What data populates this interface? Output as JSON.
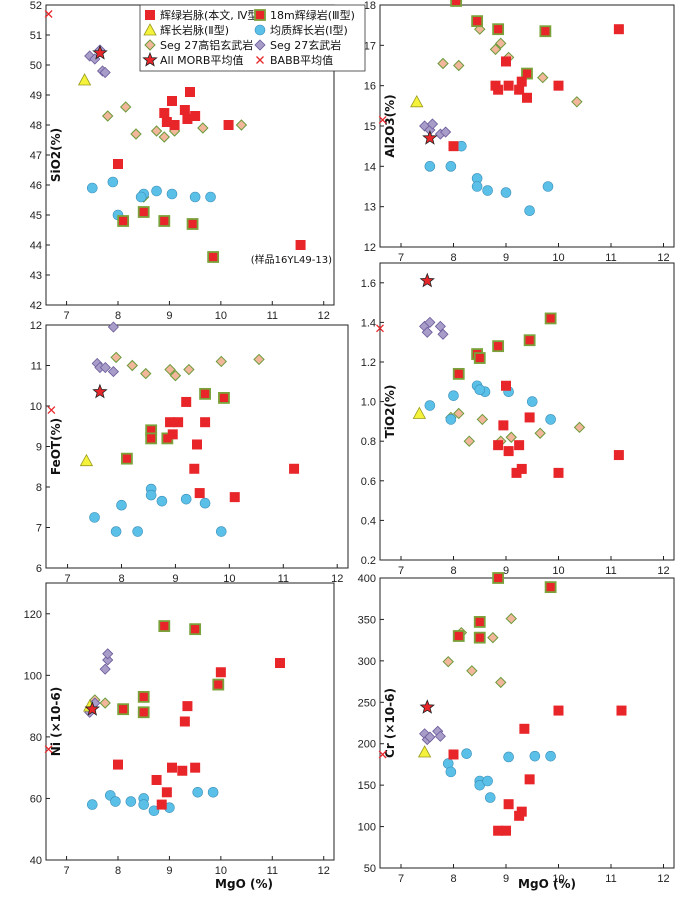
{
  "legend": [
    {
      "id": "dyke4",
      "label": "辉绿岩脉(本文, Ⅳ型)"
    },
    {
      "id": "dol18",
      "label": "18m辉绿岩(Ⅲ型)"
    },
    {
      "id": "gabbro2",
      "label": "辉长岩脉(Ⅱ型)"
    },
    {
      "id": "homog1",
      "label": "均质辉长岩(Ⅰ型)"
    },
    {
      "id": "seg27al",
      "label": "Seg 27高铝玄武岩"
    },
    {
      "id": "seg27",
      "label": "Seg 27玄武岩"
    },
    {
      "id": "morb",
      "label": "All MORB平均值"
    },
    {
      "id": "babb",
      "label": "BABB平均值"
    }
  ],
  "colors": {
    "dyke4": "#e8262a",
    "dol18": "#e8262a",
    "dol18_border": "#7aa23a",
    "gabbro2": "#f4f23a",
    "homog1": "#5bc0e8",
    "seg27al": "#f2b79a",
    "seg27": "#a89cc8",
    "morb": "#e8262a",
    "babb": "#e8262a"
  },
  "xlabel": "MgO (%)",
  "chart_data": [
    {
      "type": "scatter",
      "id": "sio2",
      "ylabel": "SiO2(%)",
      "xlim": [
        6.6,
        12.2
      ],
      "ylim": [
        42,
        52
      ],
      "xticks": [
        7,
        8,
        9,
        10,
        11,
        12
      ],
      "yticks": [
        42,
        43,
        44,
        45,
        46,
        47,
        48,
        49,
        50,
        51,
        52
      ],
      "annotation": "(样品16YL49-13)",
      "series": {
        "dyke4": [
          [
            8.0,
            46.7
          ],
          [
            8.9,
            48.4
          ],
          [
            8.95,
            48.1
          ],
          [
            9.05,
            48.8
          ],
          [
            9.1,
            48.0
          ],
          [
            9.3,
            48.5
          ],
          [
            9.35,
            48.2
          ],
          [
            9.4,
            49.1
          ],
          [
            9.5,
            48.3
          ],
          [
            10.15,
            48.0
          ],
          [
            11.55,
            44.0
          ]
        ],
        "dol18": [
          [
            8.1,
            44.8
          ],
          [
            8.5,
            45.1
          ],
          [
            8.9,
            44.8
          ],
          [
            9.45,
            44.7
          ],
          [
            9.85,
            43.6
          ]
        ],
        "gabbro2": [
          [
            7.35,
            49.5
          ]
        ],
        "homog1": [
          [
            7.5,
            45.9
          ],
          [
            7.9,
            46.1
          ],
          [
            8.0,
            45.0
          ],
          [
            8.5,
            45.7
          ],
          [
            8.75,
            45.8
          ],
          [
            9.05,
            45.7
          ],
          [
            9.5,
            45.6
          ],
          [
            9.8,
            45.6
          ],
          [
            8.45,
            45.6
          ]
        ],
        "seg27al": [
          [
            7.8,
            48.3
          ],
          [
            8.15,
            48.6
          ],
          [
            8.35,
            47.7
          ],
          [
            8.5,
            45.6
          ],
          [
            8.75,
            47.8
          ],
          [
            8.9,
            47.6
          ],
          [
            9.1,
            47.8
          ],
          [
            9.65,
            47.9
          ],
          [
            10.4,
            48.0
          ]
        ],
        "seg27": [
          [
            7.45,
            50.3
          ],
          [
            7.55,
            50.2
          ],
          [
            7.7,
            49.8
          ],
          [
            7.75,
            49.75
          ],
          [
            7.65,
            50.5
          ]
        ],
        "morb": [
          [
            7.65,
            50.4
          ]
        ],
        "babb": [
          [
            6.65,
            51.7
          ]
        ]
      }
    },
    {
      "type": "scatter",
      "id": "al2o3",
      "ylabel": "Al2O3(%)",
      "xlim": [
        6.6,
        12.2
      ],
      "ylim": [
        12,
        18
      ],
      "xticks": [
        7,
        8,
        9,
        10,
        11,
        12
      ],
      "yticks": [
        12,
        13,
        14,
        15,
        16,
        17,
        18
      ],
      "series": {
        "dyke4": [
          [
            8.0,
            14.5
          ],
          [
            8.8,
            16.0
          ],
          [
            8.85,
            15.9
          ],
          [
            9.0,
            16.6
          ],
          [
            9.05,
            16.0
          ],
          [
            9.25,
            15.9
          ],
          [
            9.3,
            16.1
          ],
          [
            9.4,
            15.7
          ],
          [
            10.0,
            16.0
          ],
          [
            11.15,
            17.4
          ]
        ],
        "dol18": [
          [
            8.05,
            18.1
          ],
          [
            8.45,
            17.6
          ],
          [
            8.85,
            17.4
          ],
          [
            9.75,
            17.35
          ],
          [
            9.4,
            16.3
          ]
        ],
        "gabbro2": [
          [
            7.3,
            15.6
          ]
        ],
        "homog1": [
          [
            7.55,
            14.0
          ],
          [
            7.95,
            14.0
          ],
          [
            8.15,
            14.5
          ],
          [
            8.45,
            13.7
          ],
          [
            8.45,
            13.5
          ],
          [
            8.65,
            13.4
          ],
          [
            9.0,
            13.35
          ],
          [
            9.45,
            12.9
          ],
          [
            9.8,
            13.5
          ]
        ],
        "seg27al": [
          [
            7.8,
            16.55
          ],
          [
            8.1,
            16.5
          ],
          [
            8.5,
            17.4
          ],
          [
            8.8,
            16.9
          ],
          [
            8.9,
            17.05
          ],
          [
            9.05,
            16.7
          ],
          [
            9.7,
            16.2
          ],
          [
            10.35,
            15.6
          ]
        ],
        "seg27": [
          [
            7.45,
            15.0
          ],
          [
            7.55,
            14.9
          ],
          [
            7.6,
            15.05
          ],
          [
            7.75,
            14.8
          ],
          [
            7.85,
            14.85
          ]
        ],
        "morb": [
          [
            7.55,
            14.7
          ]
        ],
        "babb": [
          [
            6.65,
            15.15
          ]
        ]
      }
    },
    {
      "type": "scatter",
      "id": "feo",
      "ylabel": "FeOT(%)",
      "xlim": [
        6.6,
        12.2
      ],
      "ylim": [
        6,
        12
      ],
      "xticks": [
        7,
        8,
        9,
        10,
        11,
        12
      ],
      "yticks": [
        6,
        7,
        8,
        9,
        10,
        11,
        12
      ],
      "series": {
        "dyke4": [
          [
            8.9,
            9.6
          ],
          [
            8.95,
            9.3
          ],
          [
            9.05,
            9.6
          ],
          [
            9.2,
            10.1
          ],
          [
            9.4,
            9.05
          ],
          [
            9.45,
            7.85
          ],
          [
            9.55,
            9.6
          ],
          [
            9.35,
            8.45
          ],
          [
            10.1,
            7.75
          ],
          [
            11.2,
            8.45
          ]
        ],
        "dol18": [
          [
            8.1,
            8.7
          ],
          [
            8.55,
            9.4
          ],
          [
            8.55,
            9.2
          ],
          [
            8.85,
            9.2
          ],
          [
            9.55,
            10.3
          ],
          [
            9.9,
            10.2
          ]
        ],
        "gabbro2": [
          [
            7.35,
            8.65
          ]
        ],
        "homog1": [
          [
            7.5,
            7.25
          ],
          [
            7.9,
            6.9
          ],
          [
            8.0,
            7.55
          ],
          [
            8.3,
            6.9
          ],
          [
            8.55,
            7.95
          ],
          [
            8.55,
            7.8
          ],
          [
            8.75,
            7.65
          ],
          [
            9.2,
            7.7
          ],
          [
            9.55,
            7.6
          ],
          [
            9.85,
            6.9
          ]
        ],
        "seg27al": [
          [
            7.9,
            11.2
          ],
          [
            8.2,
            11.0
          ],
          [
            8.45,
            10.8
          ],
          [
            8.9,
            10.9
          ],
          [
            9.0,
            10.75
          ],
          [
            9.25,
            10.9
          ],
          [
            9.85,
            11.1
          ],
          [
            10.55,
            11.15
          ]
        ],
        "seg27": [
          [
            7.55,
            11.05
          ],
          [
            7.6,
            10.95
          ],
          [
            7.7,
            10.95
          ],
          [
            7.85,
            10.85
          ],
          [
            7.85,
            11.95
          ]
        ],
        "morb": [
          [
            7.6,
            10.35
          ]
        ],
        "babb": [
          [
            6.7,
            9.9
          ]
        ]
      }
    },
    {
      "type": "scatter",
      "id": "tio2",
      "ylabel": "TiO2(%)",
      "xlim": [
        6.6,
        12.2
      ],
      "ylim": [
        0.2,
        1.7
      ],
      "xticks": [
        7,
        8,
        9,
        10,
        11,
        12
      ],
      "yticks": [
        0.2,
        0.4,
        0.6,
        0.8,
        1.0,
        1.2,
        1.4,
        1.6
      ],
      "series": {
        "dyke4": [
          [
            8.85,
            0.78
          ],
          [
            9.0,
            1.08
          ],
          [
            9.05,
            0.75
          ],
          [
            9.2,
            0.64
          ],
          [
            9.25,
            0.78
          ],
          [
            9.3,
            0.66
          ],
          [
            9.45,
            0.92
          ],
          [
            10.0,
            0.64
          ],
          [
            11.15,
            0.73
          ],
          [
            8.95,
            0.88
          ]
        ],
        "dol18": [
          [
            8.1,
            1.14
          ],
          [
            8.45,
            1.24
          ],
          [
            8.5,
            1.22
          ],
          [
            8.85,
            1.28
          ],
          [
            9.45,
            1.31
          ],
          [
            9.85,
            1.42
          ]
        ],
        "gabbro2": [
          [
            7.35,
            0.94
          ]
        ],
        "homog1": [
          [
            7.55,
            0.98
          ],
          [
            7.95,
            0.91
          ],
          [
            8.0,
            1.03
          ],
          [
            8.45,
            1.08
          ],
          [
            8.6,
            1.05
          ],
          [
            8.5,
            1.06
          ],
          [
            9.05,
            1.05
          ],
          [
            9.5,
            1.0
          ],
          [
            9.85,
            0.91
          ]
        ],
        "seg27al": [
          [
            7.95,
            0.92
          ],
          [
            8.1,
            0.94
          ],
          [
            8.3,
            0.8
          ],
          [
            8.55,
            0.91
          ],
          [
            8.9,
            0.8
          ],
          [
            9.1,
            0.82
          ],
          [
            9.65,
            0.84
          ],
          [
            10.4,
            0.87
          ]
        ],
        "seg27": [
          [
            7.45,
            1.38
          ],
          [
            7.55,
            1.4
          ],
          [
            7.5,
            1.35
          ],
          [
            7.75,
            1.38
          ],
          [
            7.8,
            1.34
          ]
        ],
        "morb": [
          [
            7.5,
            1.61
          ]
        ],
        "babb": [
          [
            6.6,
            1.37
          ]
        ]
      }
    },
    {
      "type": "scatter",
      "id": "ni",
      "ylabel": "Ni (×10-6)",
      "xlim": [
        6.6,
        12.2
      ],
      "ylim": [
        40,
        130
      ],
      "xticks": [
        7,
        8,
        9,
        10,
        11,
        12
      ],
      "yticks": [
        40,
        60,
        80,
        100,
        120
      ],
      "series": {
        "dyke4": [
          [
            8.0,
            71
          ],
          [
            8.75,
            66
          ],
          [
            8.85,
            58
          ],
          [
            8.95,
            62
          ],
          [
            9.05,
            70
          ],
          [
            9.25,
            69
          ],
          [
            9.3,
            85
          ],
          [
            9.35,
            90
          ],
          [
            9.5,
            70
          ],
          [
            10.0,
            101
          ],
          [
            11.15,
            104
          ]
        ],
        "dol18": [
          [
            8.1,
            89
          ],
          [
            8.5,
            88
          ],
          [
            8.5,
            93
          ],
          [
            8.9,
            116
          ],
          [
            9.5,
            115
          ],
          [
            9.95,
            97
          ]
        ],
        "gabbro2": [
          [
            7.45,
            90
          ]
        ],
        "homog1": [
          [
            7.5,
            58
          ],
          [
            7.85,
            61
          ],
          [
            7.95,
            59
          ],
          [
            8.25,
            59
          ],
          [
            8.5,
            60
          ],
          [
            8.5,
            58
          ],
          [
            8.7,
            56
          ],
          [
            9.0,
            57
          ],
          [
            9.55,
            62
          ],
          [
            9.85,
            62
          ]
        ],
        "seg27al": [
          [
            7.55,
            92
          ],
          [
            7.75,
            91
          ]
        ],
        "seg27": [
          [
            7.45,
            88
          ],
          [
            7.55,
            91
          ],
          [
            7.75,
            102
          ],
          [
            7.8,
            105
          ],
          [
            7.8,
            107
          ]
        ],
        "morb": [
          [
            7.5,
            89
          ]
        ],
        "babb": [
          [
            6.65,
            76
          ]
        ]
      }
    },
    {
      "type": "scatter",
      "id": "cr",
      "ylabel": "Cr (×10-6)",
      "xlim": [
        6.6,
        12.2
      ],
      "ylim": [
        50,
        400
      ],
      "xticks": [
        7,
        8,
        9,
        10,
        11,
        12
      ],
      "yticks": [
        50,
        100,
        150,
        200,
        250,
        300,
        350,
        400
      ],
      "series": {
        "dyke4": [
          [
            8.0,
            187
          ],
          [
            8.85,
            95
          ],
          [
            9.0,
            95
          ],
          [
            9.05,
            127
          ],
          [
            9.25,
            113
          ],
          [
            9.3,
            118
          ],
          [
            9.35,
            218
          ],
          [
            9.45,
            157
          ],
          [
            10.0,
            240
          ],
          [
            11.2,
            240
          ]
        ],
        "dol18": [
          [
            8.1,
            330
          ],
          [
            8.5,
            347
          ],
          [
            8.5,
            328
          ],
          [
            8.85,
            400
          ],
          [
            9.85,
            389
          ]
        ],
        "gabbro2": [
          [
            7.45,
            190
          ]
        ],
        "homog1": [
          [
            7.9,
            176
          ],
          [
            7.95,
            166
          ],
          [
            8.25,
            188
          ],
          [
            8.5,
            155
          ],
          [
            8.5,
            150
          ],
          [
            8.65,
            155
          ],
          [
            8.7,
            135
          ],
          [
            9.05,
            184
          ],
          [
            9.55,
            185
          ],
          [
            9.85,
            185
          ]
        ],
        "seg27al": [
          [
            7.9,
            299
          ],
          [
            8.15,
            334
          ],
          [
            8.35,
            288
          ],
          [
            8.75,
            328
          ],
          [
            8.9,
            274
          ],
          [
            9.1,
            351
          ]
        ],
        "seg27": [
          [
            7.45,
            212
          ],
          [
            7.5,
            205
          ],
          [
            7.55,
            208
          ],
          [
            7.7,
            215
          ],
          [
            7.75,
            209
          ]
        ],
        "morb": [
          [
            7.5,
            244
          ]
        ],
        "babb": [
          [
            6.65,
            187
          ]
        ]
      }
    }
  ]
}
